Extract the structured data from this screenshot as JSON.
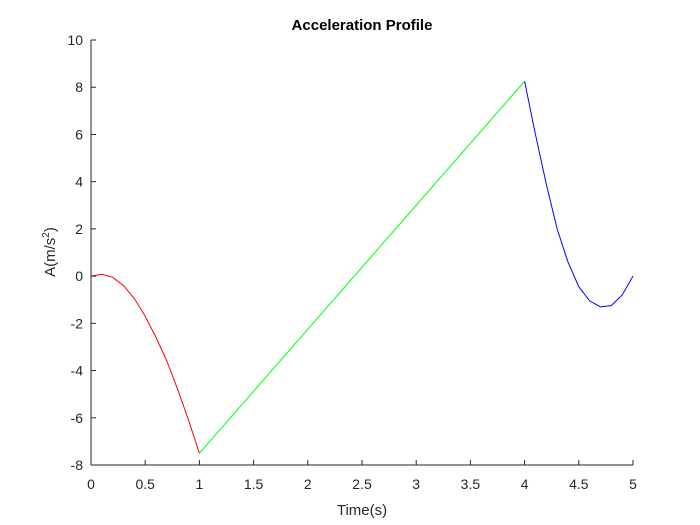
{
  "chart_data": {
    "type": "line",
    "title": "Acceleration Profile",
    "xlabel": "Time(s)",
    "ylabel_main": "A(m/s",
    "ylabel_sup": "2",
    "ylabel_close": ")",
    "xlim": [
      0,
      5
    ],
    "ylim": [
      -8,
      10
    ],
    "grid": false,
    "x_ticks": [
      0,
      0.5,
      1,
      1.5,
      2,
      2.5,
      3,
      3.5,
      4,
      4.5,
      5
    ],
    "x_tick_labels": [
      "0",
      "0.5",
      "1",
      "1.5",
      "2",
      "2.5",
      "3",
      "3.5",
      "4",
      "4.5",
      "5"
    ],
    "y_ticks": [
      -8,
      -6,
      -4,
      -2,
      0,
      2,
      4,
      6,
      8,
      10
    ],
    "y_tick_labels": [
      "-8",
      "-6",
      "-4",
      "-2",
      "0",
      "2",
      "4",
      "6",
      "8",
      "10"
    ],
    "series": [
      {
        "color": "#ff0000",
        "x": [
          0,
          0.1,
          0.2,
          0.3,
          0.4,
          0.5,
          0.6,
          0.7,
          0.8,
          0.9,
          1.0
        ],
        "y": [
          0,
          0.08,
          -0.05,
          -0.4,
          -0.95,
          -1.7,
          -2.6,
          -3.6,
          -4.8,
          -6.1,
          -7.5
        ]
      },
      {
        "color": "#00ff00",
        "x": [
          1,
          4
        ],
        "y": [
          -7.5,
          8.25
        ]
      },
      {
        "color": "#0000ff",
        "x": [
          4.0,
          4.1,
          4.2,
          4.3,
          4.4,
          4.5,
          4.6,
          4.7,
          4.8,
          4.9,
          5.0
        ],
        "y": [
          8.25,
          6.0,
          3.9,
          2.0,
          0.6,
          -0.45,
          -1.05,
          -1.3,
          -1.25,
          -0.8,
          0.0
        ]
      }
    ]
  }
}
